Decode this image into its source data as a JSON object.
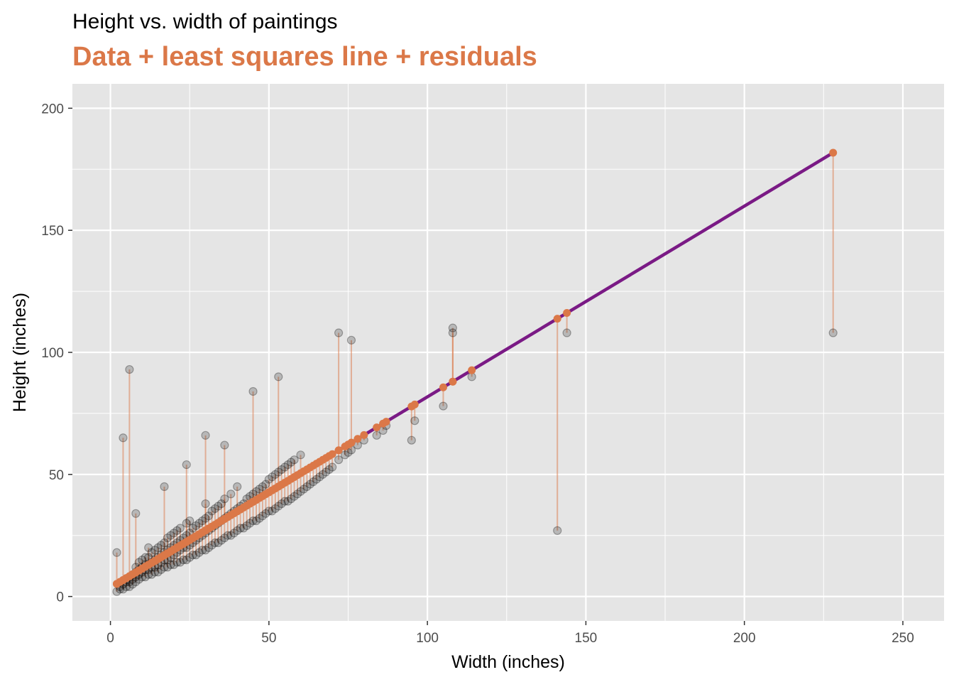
{
  "chart_data": {
    "type": "scatter",
    "title": "Height vs. width of paintings",
    "subtitle": "Data + least squares line + residuals",
    "xlabel": "Width (inches)",
    "ylabel": "Height (inches)",
    "xlim": [
      -12,
      263
    ],
    "ylim": [
      -10,
      210
    ],
    "x_ticks": [
      0,
      50,
      100,
      150,
      200,
      250
    ],
    "y_ticks": [
      0,
      50,
      100,
      150,
      200
    ],
    "grid": true,
    "legend": "none",
    "fit_line": {
      "intercept": 3.6214,
      "slope": 0.7814,
      "x_range": [
        2,
        228
      ]
    },
    "colors": {
      "panel": "#e5e5e5",
      "grid": "#ffffff",
      "points": "#000000",
      "fitted": "#db7848",
      "line": "#7a1a85",
      "subtitle": "#db7848"
    },
    "series": [
      {
        "x": [
          2,
          3,
          3,
          4,
          4,
          5,
          5,
          5,
          6,
          6,
          6,
          7,
          7,
          7,
          8,
          8,
          8,
          8,
          9,
          9,
          9,
          9,
          10,
          10,
          10,
          10,
          11,
          11,
          11,
          11,
          12,
          12,
          12,
          12,
          12,
          13,
          13,
          13,
          13,
          14,
          14,
          14,
          14,
          15,
          15,
          15,
          15,
          16,
          16,
          16,
          16,
          17,
          17,
          17,
          17,
          18,
          18,
          18,
          18,
          19,
          19,
          19,
          19,
          20,
          20,
          20,
          20,
          21,
          21,
          21,
          21,
          22,
          22,
          22,
          22,
          23,
          23,
          23,
          24,
          24,
          24,
          24,
          25,
          25,
          25,
          25,
          26,
          26,
          26,
          27,
          27,
          27,
          28,
          28,
          28,
          29,
          29,
          29,
          30,
          30,
          30,
          30,
          31,
          31,
          31,
          32,
          32,
          32,
          33,
          33,
          33,
          34,
          34,
          34,
          35,
          35,
          35,
          36,
          36,
          36,
          37,
          37,
          38,
          38,
          38,
          39,
          39,
          40,
          40,
          40,
          41,
          41,
          42,
          42,
          43,
          43,
          44,
          44,
          45,
          45,
          46,
          46,
          47,
          47,
          48,
          48,
          49,
          49,
          50,
          50,
          51,
          51,
          52,
          52,
          53,
          53,
          54,
          54,
          55,
          55,
          56,
          56,
          57,
          57,
          58,
          58,
          59,
          60,
          60,
          61,
          62,
          63,
          64,
          65,
          66,
          67,
          68,
          69,
          70,
          72,
          74,
          75,
          76,
          78,
          80,
          84,
          86,
          87,
          95,
          96,
          105,
          108,
          108,
          114,
          141,
          144,
          228,
          2,
          4,
          6,
          8,
          17,
          24,
          30,
          36,
          45,
          53,
          72,
          76
        ],
        "y": [
          2,
          3,
          4,
          3,
          5,
          4,
          6,
          7,
          4,
          6,
          8,
          5,
          7,
          9,
          6,
          8,
          10,
          12,
          7,
          9,
          11,
          14,
          8,
          10,
          12,
          15,
          8,
          11,
          13,
          16,
          9,
          11,
          13,
          16,
          20,
          9,
          12,
          14,
          18,
          10,
          12,
          15,
          19,
          10,
          13,
          16,
          20,
          11,
          14,
          17,
          21,
          12,
          15,
          18,
          22,
          12,
          15,
          19,
          24,
          13,
          16,
          20,
          25,
          13,
          17,
          21,
          26,
          14,
          18,
          22,
          27,
          14,
          19,
          23,
          28,
          15,
          20,
          24,
          15,
          20,
          25,
          30,
          16,
          21,
          26,
          31,
          17,
          22,
          28,
          17,
          23,
          29,
          18,
          24,
          30,
          19,
          25,
          31,
          19,
          26,
          32,
          38,
          20,
          27,
          33,
          21,
          28,
          35,
          22,
          29,
          36,
          22,
          30,
          37,
          23,
          31,
          38,
          24,
          32,
          40,
          25,
          33,
          25,
          34,
          42,
          26,
          35,
          27,
          36,
          45,
          28,
          37,
          28,
          38,
          29,
          40,
          30,
          41,
          31,
          42,
          31,
          43,
          32,
          44,
          33,
          45,
          34,
          46,
          35,
          48,
          35,
          49,
          36,
          50,
          37,
          51,
          38,
          52,
          39,
          53,
          39,
          54,
          40,
          55,
          41,
          56,
          42,
          43,
          58,
          44,
          45,
          46,
          47,
          48,
          49,
          50,
          51,
          52,
          53,
          56,
          58,
          59,
          60,
          62,
          64,
          66,
          68,
          70,
          64,
          72,
          78,
          108,
          110,
          90,
          27,
          108,
          108,
          18,
          65,
          93,
          34,
          45,
          54,
          66,
          62,
          84,
          90,
          108,
          105
        ]
      }
    ]
  }
}
